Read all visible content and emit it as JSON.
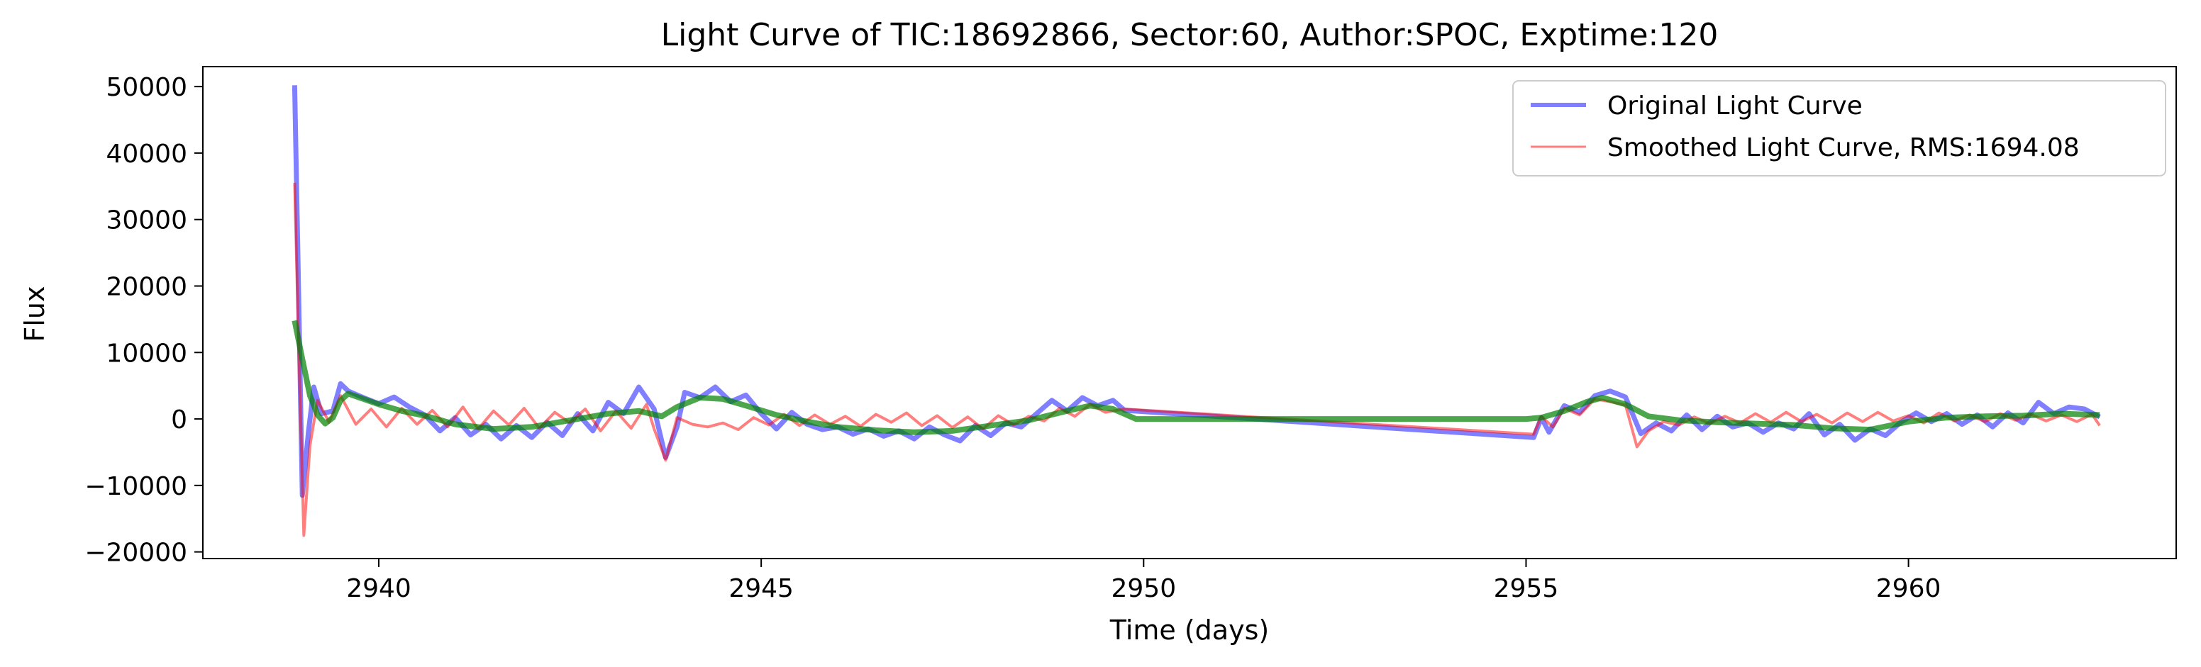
{
  "chart_data": {
    "type": "line",
    "title": "Light Curve of TIC:18692866, Sector:60, Author:SPOC, Exptime:120",
    "xlabel": "Time (days)",
    "ylabel": "Flux",
    "xlim": [
      2937.7,
      2963.5
    ],
    "ylim": [
      -21000,
      53000
    ],
    "xticks": [
      2940,
      2945,
      2950,
      2955,
      2960
    ],
    "yticks": [
      -20000,
      -10000,
      0,
      10000,
      20000,
      30000,
      40000,
      50000
    ],
    "grid": false,
    "legend_position": "top-right",
    "series": [
      {
        "name": "Original Light Curve",
        "color": "#0000ff",
        "opacity": 0.5,
        "points": [
          [
            2938.9,
            50200
          ],
          [
            2938.95,
            20000
          ],
          [
            2939.0,
            -11500
          ],
          [
            2939.08,
            -2000
          ],
          [
            2939.15,
            4800
          ],
          [
            2939.25,
            800
          ],
          [
            2939.4,
            1200
          ],
          [
            2939.5,
            5300
          ],
          [
            2939.6,
            4200
          ],
          [
            2939.8,
            3200
          ],
          [
            2940.0,
            2300
          ],
          [
            2940.2,
            3300
          ],
          [
            2940.4,
            1800
          ],
          [
            2940.6,
            600
          ],
          [
            2940.8,
            -1800
          ],
          [
            2941.0,
            200
          ],
          [
            2941.2,
            -2400
          ],
          [
            2941.4,
            -800
          ],
          [
            2941.6,
            -3000
          ],
          [
            2941.8,
            -1000
          ],
          [
            2942.0,
            -2800
          ],
          [
            2942.2,
            -500
          ],
          [
            2942.4,
            -2500
          ],
          [
            2942.6,
            800
          ],
          [
            2942.8,
            -1800
          ],
          [
            2943.0,
            2500
          ],
          [
            2943.2,
            800
          ],
          [
            2943.4,
            4800
          ],
          [
            2943.6,
            1500
          ],
          [
            2943.75,
            -5800
          ],
          [
            2943.9,
            -1200
          ],
          [
            2944.0,
            4000
          ],
          [
            2944.2,
            3200
          ],
          [
            2944.4,
            4800
          ],
          [
            2944.6,
            2600
          ],
          [
            2944.8,
            3600
          ],
          [
            2945.0,
            800
          ],
          [
            2945.2,
            -1500
          ],
          [
            2945.4,
            1000
          ],
          [
            2945.6,
            -800
          ],
          [
            2945.8,
            -1600
          ],
          [
            2946.0,
            -1200
          ],
          [
            2946.2,
            -2300
          ],
          [
            2946.4,
            -1500
          ],
          [
            2946.6,
            -2600
          ],
          [
            2946.8,
            -1800
          ],
          [
            2947.0,
            -3000
          ],
          [
            2947.2,
            -1200
          ],
          [
            2947.4,
            -2400
          ],
          [
            2947.6,
            -3300
          ],
          [
            2947.8,
            -1000
          ],
          [
            2948.0,
            -2500
          ],
          [
            2948.2,
            -600
          ],
          [
            2948.4,
            -1200
          ],
          [
            2948.6,
            800
          ],
          [
            2948.8,
            2800
          ],
          [
            2949.0,
            1200
          ],
          [
            2949.2,
            3200
          ],
          [
            2949.4,
            2000
          ],
          [
            2949.6,
            2800
          ],
          [
            2949.75,
            1300
          ],
          [
            2955.1,
            -2800
          ],
          [
            2955.2,
            200
          ],
          [
            2955.3,
            -2000
          ],
          [
            2955.5,
            2000
          ],
          [
            2955.7,
            1000
          ],
          [
            2955.9,
            3500
          ],
          [
            2956.1,
            4200
          ],
          [
            2956.3,
            3300
          ],
          [
            2956.5,
            -2200
          ],
          [
            2956.7,
            -600
          ],
          [
            2956.9,
            -1800
          ],
          [
            2957.1,
            600
          ],
          [
            2957.3,
            -1600
          ],
          [
            2957.5,
            400
          ],
          [
            2957.7,
            -1200
          ],
          [
            2957.9,
            -600
          ],
          [
            2958.1,
            -2000
          ],
          [
            2958.3,
            -600
          ],
          [
            2958.5,
            -1500
          ],
          [
            2958.7,
            800
          ],
          [
            2958.9,
            -2400
          ],
          [
            2959.1,
            -800
          ],
          [
            2959.3,
            -3200
          ],
          [
            2959.5,
            -1500
          ],
          [
            2959.7,
            -2500
          ],
          [
            2959.9,
            -500
          ],
          [
            2960.1,
            900
          ],
          [
            2960.3,
            -400
          ],
          [
            2960.5,
            800
          ],
          [
            2960.7,
            -800
          ],
          [
            2960.9,
            600
          ],
          [
            2961.1,
            -1200
          ],
          [
            2961.3,
            900
          ],
          [
            2961.5,
            -600
          ],
          [
            2961.7,
            2500
          ],
          [
            2961.9,
            800
          ],
          [
            2962.1,
            1800
          ],
          [
            2962.3,
            1500
          ],
          [
            2962.5,
            300
          ]
        ]
      },
      {
        "name": "Smoothed Light Curve, RMS:1694.08",
        "color": "#ff0000",
        "opacity": 0.5,
        "points": [
          [
            2938.9,
            35500
          ],
          [
            2938.95,
            12000
          ],
          [
            2939.02,
            -17500
          ],
          [
            2939.1,
            -4000
          ],
          [
            2939.2,
            2800
          ],
          [
            2939.35,
            -500
          ],
          [
            2939.5,
            3500
          ],
          [
            2939.7,
            -800
          ],
          [
            2939.9,
            1500
          ],
          [
            2940.1,
            -1200
          ],
          [
            2940.3,
            1600
          ],
          [
            2940.5,
            -800
          ],
          [
            2940.7,
            1300
          ],
          [
            2940.9,
            -1200
          ],
          [
            2941.1,
            1800
          ],
          [
            2941.3,
            -1500
          ],
          [
            2941.5,
            1200
          ],
          [
            2941.7,
            -900
          ],
          [
            2941.9,
            1600
          ],
          [
            2942.1,
            -1400
          ],
          [
            2942.3,
            1000
          ],
          [
            2942.5,
            -600
          ],
          [
            2942.7,
            1500
          ],
          [
            2942.9,
            -1800
          ],
          [
            2943.1,
            1200
          ],
          [
            2943.3,
            -1400
          ],
          [
            2943.5,
            2200
          ],
          [
            2943.6,
            -1500
          ],
          [
            2943.75,
            -6200
          ],
          [
            2943.9,
            200
          ],
          [
            2944.1,
            -800
          ],
          [
            2944.3,
            -1200
          ],
          [
            2944.5,
            -600
          ],
          [
            2944.7,
            -1600
          ],
          [
            2944.9,
            200
          ],
          [
            2945.1,
            -900
          ],
          [
            2945.3,
            700
          ],
          [
            2945.5,
            -1000
          ],
          [
            2945.7,
            600
          ],
          [
            2945.9,
            -800
          ],
          [
            2946.1,
            400
          ],
          [
            2946.3,
            -1100
          ],
          [
            2946.5,
            700
          ],
          [
            2946.7,
            -500
          ],
          [
            2946.9,
            900
          ],
          [
            2947.1,
            -1000
          ],
          [
            2947.3,
            500
          ],
          [
            2947.5,
            -1300
          ],
          [
            2947.7,
            300
          ],
          [
            2947.9,
            -1500
          ],
          [
            2948.1,
            500
          ],
          [
            2948.3,
            -900
          ],
          [
            2948.5,
            400
          ],
          [
            2948.7,
            -300
          ],
          [
            2948.9,
            1600
          ],
          [
            2949.1,
            400
          ],
          [
            2949.3,
            2200
          ],
          [
            2949.5,
            1000
          ],
          [
            2949.75,
            1500
          ],
          [
            2955.1,
            -2300
          ],
          [
            2955.2,
            400
          ],
          [
            2955.35,
            -1200
          ],
          [
            2955.5,
            1600
          ],
          [
            2955.7,
            600
          ],
          [
            2955.9,
            3000
          ],
          [
            2956.1,
            2600
          ],
          [
            2956.3,
            2100
          ],
          [
            2956.45,
            -4200
          ],
          [
            2956.6,
            -1800
          ],
          [
            2956.8,
            -400
          ],
          [
            2957.0,
            -900
          ],
          [
            2957.2,
            300
          ],
          [
            2957.4,
            -700
          ],
          [
            2957.6,
            400
          ],
          [
            2957.8,
            -600
          ],
          [
            2958.0,
            800
          ],
          [
            2958.2,
            -500
          ],
          [
            2958.4,
            1000
          ],
          [
            2958.6,
            -400
          ],
          [
            2958.8,
            700
          ],
          [
            2959.0,
            -600
          ],
          [
            2959.2,
            900
          ],
          [
            2959.4,
            -400
          ],
          [
            2959.6,
            1000
          ],
          [
            2959.8,
            -300
          ],
          [
            2960.0,
            500
          ],
          [
            2960.2,
            -600
          ],
          [
            2960.4,
            900
          ],
          [
            2960.6,
            -300
          ],
          [
            2960.8,
            600
          ],
          [
            2961.0,
            -400
          ],
          [
            2961.2,
            800
          ],
          [
            2961.4,
            -200
          ],
          [
            2961.6,
            700
          ],
          [
            2961.8,
            -300
          ],
          [
            2962.0,
            600
          ],
          [
            2962.2,
            -400
          ],
          [
            2962.4,
            700
          ],
          [
            2962.5,
            -1000
          ]
        ]
      },
      {
        "name": "",
        "color": "#008000",
        "opacity": 0.7,
        "points": [
          [
            2938.9,
            14800
          ],
          [
            2939.0,
            9000
          ],
          [
            2939.1,
            3500
          ],
          [
            2939.2,
            600
          ],
          [
            2939.3,
            -700
          ],
          [
            2939.4,
            200
          ],
          [
            2939.5,
            2800
          ],
          [
            2939.6,
            3800
          ],
          [
            2939.8,
            3000
          ],
          [
            2940.0,
            2200
          ],
          [
            2940.3,
            1200
          ],
          [
            2940.6,
            500
          ],
          [
            2941.0,
            -800
          ],
          [
            2941.5,
            -1500
          ],
          [
            2942.0,
            -1200
          ],
          [
            2942.5,
            -200
          ],
          [
            2943.0,
            800
          ],
          [
            2943.4,
            1200
          ],
          [
            2943.7,
            400
          ],
          [
            2943.9,
            1800
          ],
          [
            2944.2,
            3200
          ],
          [
            2944.5,
            3000
          ],
          [
            2944.8,
            2000
          ],
          [
            2945.2,
            600
          ],
          [
            2945.6,
            -400
          ],
          [
            2946.0,
            -1200
          ],
          [
            2946.5,
            -1700
          ],
          [
            2947.0,
            -2000
          ],
          [
            2947.5,
            -1800
          ],
          [
            2948.0,
            -1000
          ],
          [
            2948.5,
            -200
          ],
          [
            2949.0,
            1200
          ],
          [
            2949.3,
            2000
          ],
          [
            2949.6,
            1500
          ],
          [
            2949.9,
            0
          ],
          [
            2955.0,
            0
          ],
          [
            2955.2,
            200
          ],
          [
            2955.5,
            1200
          ],
          [
            2955.8,
            2600
          ],
          [
            2956.0,
            3200
          ],
          [
            2956.3,
            2200
          ],
          [
            2956.6,
            400
          ],
          [
            2957.0,
            -200
          ],
          [
            2957.5,
            -500
          ],
          [
            2958.0,
            -700
          ],
          [
            2958.5,
            -900
          ],
          [
            2959.0,
            -1400
          ],
          [
            2959.5,
            -1600
          ],
          [
            2960.0,
            -400
          ],
          [
            2960.5,
            200
          ],
          [
            2961.0,
            400
          ],
          [
            2961.5,
            500
          ],
          [
            2962.0,
            800
          ],
          [
            2962.5,
            600
          ]
        ]
      }
    ]
  }
}
